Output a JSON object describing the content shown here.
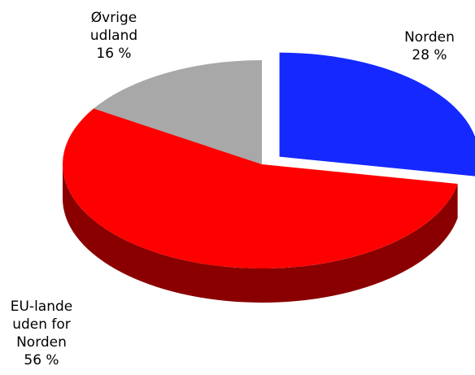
{
  "chart_data": {
    "type": "pie",
    "categories": [
      "Norden",
      "EU-lande uden for Norden",
      "Øvrige udland"
    ],
    "values": [
      28,
      56,
      16
    ],
    "value_labels": [
      "28 %",
      "56 %",
      "16 %"
    ],
    "colors": [
      "#1428ff",
      "#ff0000",
      "#a8a8a8"
    ],
    "side_colors": [
      "#0a1580",
      "#8a0000",
      "#505050"
    ],
    "start_angle": 0,
    "direction": "clockwise",
    "exploded": [
      0
    ]
  }
}
